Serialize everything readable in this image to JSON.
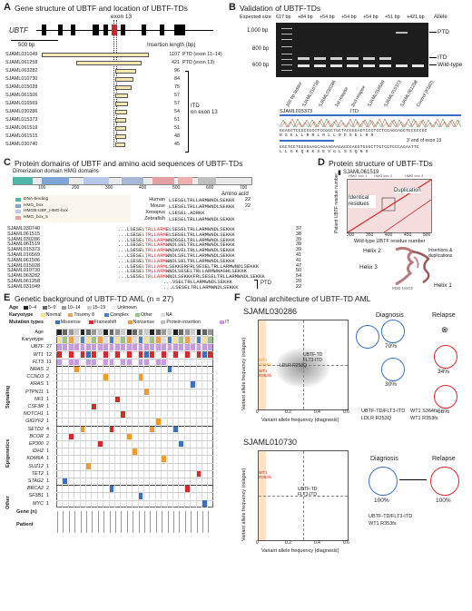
{
  "panelA": {
    "label": "A",
    "title": "Gene structure of UBTF and location of UBTF-TDs",
    "exon_label": "exon 13",
    "gene_label": "UBTF",
    "scale_label": "500 bp",
    "col_header": "Insertion length (bp)",
    "rows": [
      {
        "id": "SJAML031049",
        "len": 1107,
        "note": "PTD (exon 11–14)"
      },
      {
        "id": "SJAML061258",
        "len": 421,
        "note": "PTD (exon 13)"
      },
      {
        "id": "SJAML063282",
        "len": 96,
        "note": ""
      },
      {
        "id": "SJAML010730",
        "len": 84,
        "note": ""
      },
      {
        "id": "SJAML015028",
        "len": 75,
        "note": ""
      },
      {
        "id": "SJAML061506",
        "len": 57,
        "note": ""
      },
      {
        "id": "SJAML016569",
        "len": 57,
        "note": ""
      },
      {
        "id": "SJAML030286",
        "len": 54,
        "note": ""
      },
      {
        "id": "SJAML015373",
        "len": 51,
        "note": ""
      },
      {
        "id": "SJAML061519",
        "len": 51,
        "note": ""
      },
      {
        "id": "SJAML061515",
        "len": 48,
        "note": ""
      },
      {
        "id": "SJAML030740",
        "len": 45,
        "note": ""
      }
    ],
    "itd_label_1": "ITD",
    "itd_label_2": "on exon 13"
  },
  "panelB": {
    "label": "B",
    "title": "Validation of UBTF-TDs",
    "expected_label": "Expected size",
    "sizes": [
      "617 bp",
      "+84 bp",
      "+54 bp",
      "+54 bp",
      "+54 bp",
      "+51 bp",
      "+421 bp"
    ],
    "allele_label": "Allele",
    "ladder": [
      "1,000 bp",
      "800 bp",
      "600 bp"
    ],
    "allele_labels": [
      "PTD",
      "ITD",
      "Wild-type"
    ],
    "lanes": [
      "100 bp ladder",
      "SJAML010730",
      "SJAML030286",
      "1st relapse",
      "2nd relapse",
      "SJAML016569",
      "SJAML015373",
      "SJAML061258",
      "Control (K562)"
    ],
    "seq_sample": "SJAML015373",
    "itd_tag": "ITD",
    "exon_end": "3′ end of exon 13",
    "dna1": "GGAGCTCCGCCGCCTCCGGCTGCTACGGGAGTCCCTCCTCGAGGAGCTCCGCCGC",
    "aa1": "R  S  E  L  L  R  R  L  R  L  L  R  E  S  E  L  R  R",
    "dna2": "GGCTCCTGGGGAAGCAGAAGAAGAGCGAGGTGGGCTTGTCGTCCCAGAATTC",
    "aa2": "L  L  G  K  Q  K  K  S  E  V  G  L  S  S  Q  N  S"
  },
  "panelC": {
    "label": "C",
    "title": "Protein domains of UBTF and amino acid sequences of UBTF-TDs",
    "domain_sub": "Dimerization domain  HMG domains",
    "axis": [
      "100",
      "200",
      "300",
      "400",
      "500",
      "600",
      "700"
    ],
    "aa_label": "Amino acid",
    "legend": [
      "DNA-binding",
      "HMG_box",
      "HMGB-UBF_HMG-box",
      "HMG_box_5"
    ],
    "species": [
      {
        "name": "Human",
        "seq": "LSESELTRLLARMWNDLSEKKK",
        "n": "22"
      },
      {
        "name": "Mouse",
        "seq": "LSESELTRLLARMWNDLSEKKK",
        "n": "22"
      },
      {
        "name": "Xenopus",
        "seq": "LSESEL.ADRKK",
        "n": ""
      },
      {
        "name": "Zebrafish",
        "seq": "LSESELTRLLARMWNDLSEKKK",
        "n": ""
      }
    ],
    "alignments": [
      {
        "id": "SJAML030740",
        "pre": "...LSESE",
        "red": "LTRLLARM",
        "post": "ELSESELTRLLARMWNDLSEKKK",
        "n": "37"
      },
      {
        "id": "SJAML061515",
        "pre": "...LSESE",
        "red": "LTRLLARM",
        "post": "ELSESELTRLLARMWNDLSEKKK",
        "n": "38"
      },
      {
        "id": "SJAML030286",
        "pre": "...LSESE",
        "red": "LTRLLARM",
        "post": "WNDGSELTRLLARMWNDLSEKKK",
        "n": "39"
      },
      {
        "id": "SJAML061519",
        "pre": "...LSESE",
        "red": "LTRLLARM",
        "post": "WNDLSELTRLLARMWNDLSEKKK",
        "n": "39"
      },
      {
        "id": "SJAML015373",
        "pre": "...LSESE",
        "red": "LTRLLARM",
        "post": "WNDAVELTRLLARMWNDLSEKKK",
        "n": "39"
      },
      {
        "id": "SJAML016569",
        "pre": "...LSESE",
        "red": "LTRLLARM",
        "post": "WNDLSELTRLLARMWNDLSEKKK",
        "n": "41"
      },
      {
        "id": "SJAML061506",
        "pre": "...LSESE",
        "red": "LTRLLARM",
        "post": "WNDLSELTRLLARMWNDLSEKKK",
        "n": "41"
      },
      {
        "id": "SJAML015028",
        "pre": "...LSESE",
        "red": "LTRLLARM",
        "post": "LSEKKERFRLSESELTRLLARMWNDLSEKKK",
        "n": "47"
      },
      {
        "id": "SJAML010730",
        "pre": "...LSESE",
        "red": "LTRLLARM",
        "post": "WNDLSESELTRLLARMWNAGHLSEKKK",
        "n": "50"
      },
      {
        "id": "SJAML063282",
        "pre": "...LSESE",
        "red": "LTRLLARM",
        "post": "WNDLSEKKKFRLSESELTRLLARMWNDLSEKKK",
        "n": "54"
      },
      {
        "id": "SJAML061258",
        "pre": "...",
        "red": "",
        "post": "VSELTRLLARMWNDLSEKKK",
        "n": "20"
      },
      {
        "id": "SJAML031049",
        "pre": "...",
        "red": "",
        "post": "LSESELTRLLARMWNDLSEKKK",
        "n": "22"
      }
    ],
    "ptd_label": "PTD"
  },
  "panelD": {
    "label": "D",
    "title": "Protein structure of UBTF-TDs",
    "sample": "SJAML061519",
    "domains_top": [
      "HMG box 1",
      "HMG box 2",
      "HMG box 4"
    ],
    "dup_label": "Duplication",
    "ident_label": "Identical residues",
    "ylabel": "Patient UBTF residue number",
    "xlabel": "Wild-type UBTF residue number",
    "xticks": [
      "300",
      "350",
      "400",
      "450",
      "500"
    ],
    "helix_labels": [
      "Helix 2",
      "Helix 3",
      "Helix 1"
    ],
    "ins_label": "Insertions & duplications",
    "pdb": "PDB 1WGF"
  },
  "panelE": {
    "label": "E",
    "title": "Genetic background of UBTF-TD AML (n = 27)",
    "legend_age_title": "Age",
    "legend_age": [
      "0–4",
      "5–9",
      "10–14",
      "15–19",
      "Unknown"
    ],
    "legend_karyo_title": "Karyotype",
    "legend_karyo": [
      "Normal",
      "Trisomy 8",
      "Complex",
      "Other",
      "NA"
    ],
    "legend_mut_title": "Mutation types",
    "legend_mut": [
      "Missense",
      "Frameshift",
      "Nonsense",
      "Protein insertion",
      "ITD or PTD"
    ],
    "top_rows": [
      {
        "name": "Age",
        "n": ""
      },
      {
        "name": "Karyotype",
        "n": ""
      },
      {
        "name": "UBTF",
        "n": "27"
      },
      {
        "name": "WT1",
        "n": "12"
      },
      {
        "name": "FLT3",
        "n": "11"
      }
    ],
    "groups": [
      {
        "name": "Signaling",
        "genes": [
          {
            "g": "NRAS",
            "n": "2"
          },
          {
            "g": "CCND3",
            "n": "2"
          },
          {
            "g": "KRAS",
            "n": "1"
          },
          {
            "g": "PTPN11",
            "n": "1"
          },
          {
            "g": "NF1",
            "n": "1"
          },
          {
            "g": "CSF3R",
            "n": "1"
          },
          {
            "g": "NOTCH1",
            "n": "1"
          },
          {
            "g": "GIGYF2",
            "n": "1"
          }
        ]
      },
      {
        "name": "Epigenetics",
        "genes": [
          {
            "g": "SETD2",
            "n": "4"
          },
          {
            "g": "BCOR",
            "n": "2"
          },
          {
            "g": "EP300",
            "n": "2"
          },
          {
            "g": "IDH2",
            "n": "1"
          },
          {
            "g": "KDM6A",
            "n": "1"
          },
          {
            "g": "SUZ12",
            "n": "1"
          },
          {
            "g": "TET2",
            "n": "1"
          },
          {
            "g": "STAG2",
            "n": "1"
          }
        ]
      },
      {
        "name": "Other",
        "genes": [
          {
            "g": "BRCA2",
            "n": "2"
          },
          {
            "g": "SF3B1",
            "n": "1"
          },
          {
            "g": "MYC",
            "n": "1"
          }
        ]
      }
    ],
    "gene_n_label": "Gene (n)",
    "patient_label": "Patient"
  },
  "panelF": {
    "label": "F",
    "title": "Clonal architecture of UBTF-TD AML",
    "case1": {
      "id": "SJAML030286",
      "ylabel": "Variant allele frequency (relapse)",
      "xlabel": "Variant allele frequency (diagnosis)",
      "ticks": [
        "0",
        "0.2",
        "0.4",
        "0.6"
      ],
      "pts": [
        "UBTF-TD",
        "FLT3-ITD",
        "LDLR R253Q"
      ],
      "wt1": [
        "WT1",
        "S364fs",
        "WT1",
        "R353fs"
      ],
      "diag": "Diagnosis",
      "rel": "Relapse",
      "pct_diag": [
        "70%",
        "30%"
      ],
      "pct_rel": [
        "34%",
        "66%"
      ],
      "legend": [
        "UBTF-TD/FLT3-ITD",
        "LDLR R253Q",
        "WT1 S364fs",
        "WT1 R353fs"
      ]
    },
    "case2": {
      "id": "SJAML010730",
      "ylabel": "Variant allele frequency (relapse)",
      "xlabel": "Variant allele frequency (diagnosis)",
      "ticks": [
        "0",
        "0.2",
        "0.4",
        "0.6"
      ],
      "pts": [
        "UBTF-TD",
        "FLT3-ITD"
      ],
      "wt1": [
        "WT1",
        "R353fs"
      ],
      "diag": "Diagnosis",
      "rel": "Relapse",
      "pct_diag": [
        "100%"
      ],
      "pct_rel": [
        "100%"
      ],
      "legend": [
        "UBTF-TD/FLT3-ITD",
        "WT1 R353fs"
      ]
    }
  },
  "colors": {
    "red": "#d42a2a",
    "yellow": "#f4e9b3",
    "blue": "#3b6fc4",
    "purple": "#c79be0",
    "orange": "#f29b2c",
    "gray": "#9a9a9a"
  }
}
